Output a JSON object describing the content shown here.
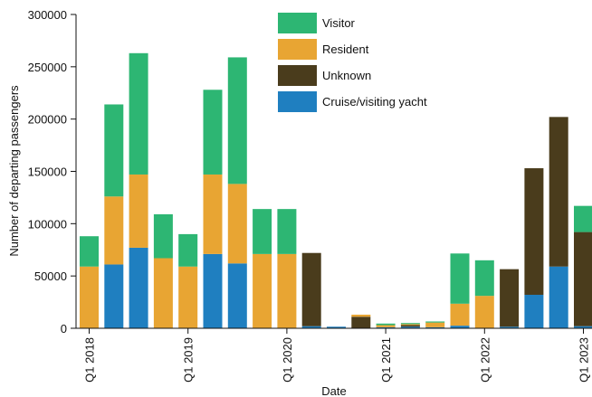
{
  "chart_data": {
    "type": "bar",
    "stacked": true,
    "xlabel": "Date",
    "ylabel": "Number of departing passengers",
    "ylim": [
      0,
      300000
    ],
    "y_ticks": [
      0,
      50000,
      100000,
      150000,
      200000,
      250000,
      300000
    ],
    "y_tick_labels": [
      "0",
      "50000",
      "100000",
      "150000",
      "200000",
      "250000",
      "300000"
    ],
    "x_tick_labels": [
      "Q1 2018",
      "Q1 2019",
      "Q1 2020",
      "Q1 2021",
      "Q1 2022",
      "Q1 2023"
    ],
    "x_tick_category_index": [
      0,
      4,
      8,
      12,
      16,
      20
    ],
    "categories": [
      "2018 Q1",
      "2018 Q2",
      "2018 Q3",
      "2018 Q4",
      "2019 Q1",
      "2019 Q2",
      "2019 Q3",
      "2019 Q4",
      "2020 Q1",
      "2020 Q2",
      "2020 Q3",
      "2020 Q4",
      "2021 Q1",
      "2021 Q2",
      "2021 Q3",
      "2021 Q4",
      "2022 Q1",
      "2022 Q2",
      "2022 Q3",
      "2022 Q4",
      "2023 Q1"
    ],
    "series": [
      {
        "name": "Cruise/visiting yacht",
        "color": "#1f7fc0",
        "values": [
          0,
          61000,
          77000,
          0,
          0,
          71000,
          62000,
          0,
          0,
          2000,
          1500,
          0,
          1000,
          1500,
          1000,
          2500,
          0,
          1500,
          32000,
          59000,
          2000
        ]
      },
      {
        "name": "Unknown",
        "color": "#4a3c1c",
        "values": [
          0,
          0,
          0,
          0,
          0,
          0,
          0,
          0,
          0,
          70000,
          0,
          11000,
          0,
          1500,
          0,
          0,
          0,
          55000,
          121000,
          143000,
          90000
        ]
      },
      {
        "name": "Resident",
        "color": "#e8a533",
        "values": [
          59000,
          65000,
          70000,
          67000,
          59000,
          76000,
          76000,
          71000,
          71000,
          0,
          0,
          2000,
          2000,
          1000,
          4500,
          21000,
          31000,
          0,
          0,
          0,
          0
        ]
      },
      {
        "name": "Visitor",
        "color": "#2db673",
        "values": [
          29000,
          88000,
          116000,
          42000,
          31000,
          81000,
          121000,
          43000,
          43000,
          0,
          0,
          0,
          1500,
          1000,
          1000,
          48000,
          34000,
          0,
          0,
          0,
          25000
        ]
      }
    ],
    "legend": {
      "position": "top-right",
      "order": [
        "Visitor",
        "Resident",
        "Unknown",
        "Cruise/visiting yacht"
      ]
    },
    "grid": false
  }
}
